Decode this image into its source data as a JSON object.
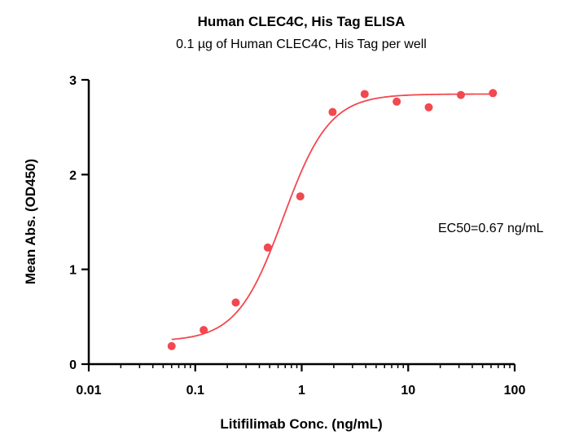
{
  "chart_data": {
    "type": "scatter",
    "title": "Human CLEC4C, His Tag ELISA",
    "subtitle": "0.1 µg of Human CLEC4C, His Tag per well",
    "xlabel": "Litifilimab Conc. (ng/mL)",
    "ylabel": "Mean Abs. (OD450)",
    "xscale": "log",
    "xlim": [
      0.01,
      100
    ],
    "ylim": [
      0,
      3
    ],
    "xticks": [
      0.01,
      0.1,
      1,
      10,
      100
    ],
    "xtick_labels": [
      "0.01",
      "0.1",
      "1",
      "10",
      "100"
    ],
    "yticks": [
      0,
      1,
      2,
      3
    ],
    "ytick_labels": [
      "0",
      "1",
      "2",
      "3"
    ],
    "grid": false,
    "annotation": "EC50=0.67 ng/mL",
    "series": [
      {
        "color": "#f2484f",
        "points": [
          {
            "x": 0.06,
            "y": 0.19
          },
          {
            "x": 0.12,
            "y": 0.36
          },
          {
            "x": 0.24,
            "y": 0.65
          },
          {
            "x": 0.48,
            "y": 1.23
          },
          {
            "x": 0.97,
            "y": 1.77
          },
          {
            "x": 1.95,
            "y": 2.66
          },
          {
            "x": 3.9,
            "y": 2.85
          },
          {
            "x": 7.8,
            "y": 2.77
          },
          {
            "x": 15.6,
            "y": 2.71
          },
          {
            "x": 31.25,
            "y": 2.84
          },
          {
            "x": 62.5,
            "y": 2.86
          }
        ],
        "fit": {
          "model": "4PL",
          "bottom": 0.24,
          "top": 2.85,
          "ec50": 0.67,
          "hill": 2.0,
          "x_range": [
            0.06,
            62.5
          ]
        }
      }
    ]
  }
}
